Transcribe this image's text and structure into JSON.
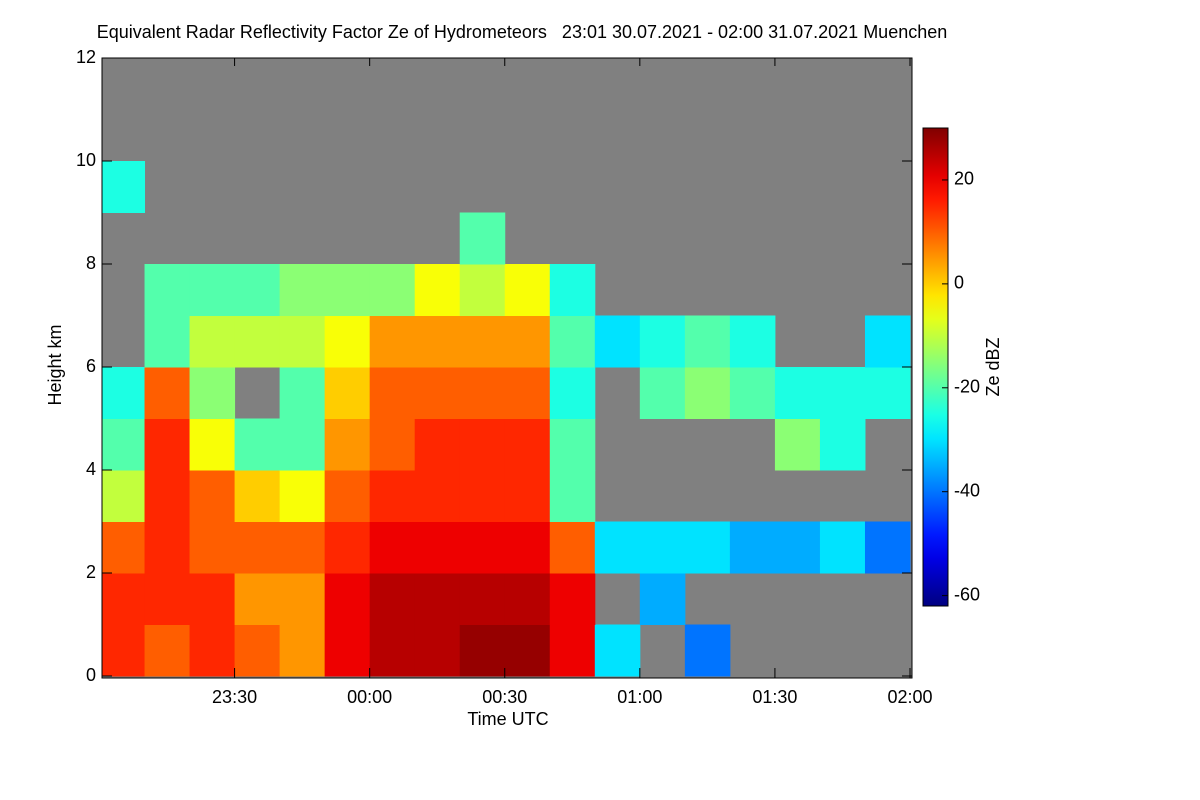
{
  "chart_data": {
    "type": "heatmap",
    "title": "Equivalent Radar Reflectivity Factor Ze of Hydrometeors   23:01 30.07.2021 - 02:00 31.07.2021 Muenchen",
    "xlabel": "Time UTC",
    "ylabel": "Height km",
    "colorbar_label": "Ze dBZ",
    "colormap": "jet",
    "missing_color": "#808080",
    "xlim": [
      1,
      180
    ],
    "xticks": [
      {
        "value": 30,
        "label": "23:30"
      },
      {
        "value": 60,
        "label": "00:00"
      },
      {
        "value": 90,
        "label": "00:30"
      },
      {
        "value": 120,
        "label": "01:00"
      },
      {
        "value": 150,
        "label": "01:30"
      },
      {
        "value": 180,
        "label": "02:00"
      }
    ],
    "ylim": [
      0,
      12
    ],
    "yticks": [
      0,
      2,
      4,
      6,
      8,
      10,
      12
    ],
    "clim": [
      -62,
      30
    ],
    "cticks": [
      20,
      0,
      -20,
      -40,
      -60
    ],
    "x": [
      5,
      15,
      25,
      35,
      45,
      55,
      65,
      75,
      85,
      95,
      105,
      115,
      125,
      135,
      145,
      155,
      165,
      175
    ],
    "y": [
      0.5,
      1.5,
      2.5,
      3.5,
      4.5,
      5.5,
      6.5,
      7.5,
      8.5,
      9.5,
      10.5,
      11.5
    ],
    "z": [
      [
        15,
        10,
        15,
        10,
        5,
        20,
        25,
        25,
        28,
        28,
        20,
        -30,
        null,
        -40,
        null,
        null,
        null,
        null
      ],
      [
        15,
        15,
        15,
        5,
        5,
        20,
        25,
        25,
        25,
        25,
        20,
        null,
        -35,
        null,
        null,
        null,
        null,
        null
      ],
      [
        10,
        15,
        10,
        10,
        10,
        15,
        20,
        20,
        20,
        20,
        10,
        -30,
        -30,
        -30,
        -35,
        -35,
        -30,
        -40
      ],
      [
        -10,
        15,
        10,
        0,
        -5,
        10,
        15,
        15,
        15,
        15,
        -20,
        null,
        null,
        null,
        null,
        null,
        null,
        null
      ],
      [
        -20,
        15,
        -5,
        -20,
        -20,
        5,
        10,
        15,
        15,
        15,
        -20,
        null,
        null,
        null,
        null,
        -15,
        -25,
        null
      ],
      [
        -25,
        10,
        -15,
        null,
        -20,
        0,
        10,
        10,
        10,
        10,
        -25,
        null,
        -20,
        -15,
        -20,
        -25,
        -25,
        -25
      ],
      [
        null,
        -20,
        -10,
        -10,
        -10,
        -5,
        5,
        5,
        5,
        5,
        -20,
        -30,
        -25,
        -20,
        -25,
        null,
        null,
        -30
      ],
      [
        null,
        -20,
        -20,
        -20,
        -15,
        -15,
        -15,
        -5,
        -10,
        -5,
        -25,
        null,
        null,
        null,
        null,
        null,
        null,
        null
      ],
      [
        null,
        null,
        null,
        null,
        null,
        null,
        null,
        null,
        -20,
        null,
        null,
        null,
        null,
        null,
        null,
        null,
        null,
        null
      ],
      [
        -25,
        null,
        null,
        null,
        null,
        null,
        null,
        null,
        null,
        null,
        null,
        null,
        null,
        null,
        null,
        null,
        null,
        null
      ],
      [
        null,
        null,
        null,
        null,
        null,
        null,
        null,
        null,
        null,
        null,
        null,
        null,
        null,
        null,
        null,
        null,
        null,
        null
      ],
      [
        null,
        null,
        null,
        null,
        null,
        null,
        null,
        null,
        null,
        null,
        null,
        null,
        null,
        null,
        null,
        null,
        null,
        null
      ]
    ]
  }
}
